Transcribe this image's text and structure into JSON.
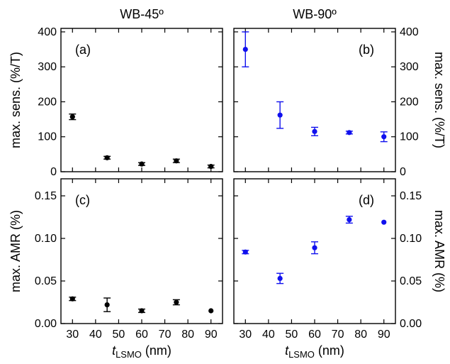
{
  "column_titles": [
    "WB-45º",
    "WB-90º"
  ],
  "xlabel": {
    "main": "t",
    "sub": "LSMO",
    "unit": " (nm)"
  },
  "ylabels": {
    "sens": "max. sens. (%/T)",
    "amr": "max. AMR (%)"
  },
  "colors": {
    "black_series": "#000000",
    "blue_series": "#1010ee"
  },
  "chart_data": [
    {
      "type": "scatter",
      "panel_label": "(a)",
      "x": [
        30,
        45,
        60,
        75,
        90
      ],
      "y": [
        157,
        40,
        22,
        31,
        15
      ],
      "error": [
        8,
        4,
        4,
        5,
        4
      ],
      "xlim": [
        25,
        95
      ],
      "ylim": [
        0,
        410
      ],
      "xticks": [
        30,
        40,
        50,
        60,
        70,
        80,
        90
      ],
      "yticks": [
        0,
        100,
        200,
        300,
        400
      ],
      "color": "#000000",
      "ylabel": "max. sens. (%/T)"
    },
    {
      "type": "scatter",
      "panel_label": "(b)",
      "x": [
        30,
        45,
        60,
        75,
        90
      ],
      "y": [
        350,
        162,
        115,
        112,
        100
      ],
      "error": [
        50,
        38,
        12,
        4,
        14
      ],
      "xlim": [
        25,
        95
      ],
      "ylim": [
        0,
        410
      ],
      "xticks": [
        30,
        40,
        50,
        60,
        70,
        80,
        90
      ],
      "yticks": [
        0,
        100,
        200,
        300,
        400
      ],
      "color": "#1010ee",
      "ylabel": "max. sens. (%/T)"
    },
    {
      "type": "scatter",
      "panel_label": "(c)",
      "x": [
        30,
        45,
        60,
        75,
        90
      ],
      "y": [
        0.029,
        0.022,
        0.015,
        0.025,
        0.015
      ],
      "error": [
        0.002,
        0.008,
        0.002,
        0.003,
        0.0
      ],
      "xlim": [
        25,
        95
      ],
      "ylim": [
        0,
        0.17
      ],
      "xticks": [
        30,
        40,
        50,
        60,
        70,
        80,
        90
      ],
      "yticks": [
        0.0,
        0.05,
        0.1,
        0.15
      ],
      "ytick_labels": [
        "0.00",
        "0.05",
        "0.10",
        "0.15"
      ],
      "color": "#000000",
      "ylabel": "max. AMR (%)",
      "xlabel": "tLSMO (nm)"
    },
    {
      "type": "scatter",
      "panel_label": "(d)",
      "x": [
        30,
        45,
        60,
        75,
        90
      ],
      "y": [
        0.084,
        0.053,
        0.089,
        0.122,
        0.119
      ],
      "error": [
        0.002,
        0.006,
        0.007,
        0.004,
        0.0
      ],
      "xlim": [
        25,
        95
      ],
      "ylim": [
        0,
        0.17
      ],
      "xticks": [
        30,
        40,
        50,
        60,
        70,
        80,
        90
      ],
      "yticks": [
        0.0,
        0.05,
        0.1,
        0.15
      ],
      "ytick_labels": [
        "0.00",
        "0.05",
        "0.10",
        "0.15"
      ],
      "color": "#1010ee",
      "ylabel": "max. AMR (%)",
      "xlabel": "tLSMO (nm)"
    }
  ]
}
